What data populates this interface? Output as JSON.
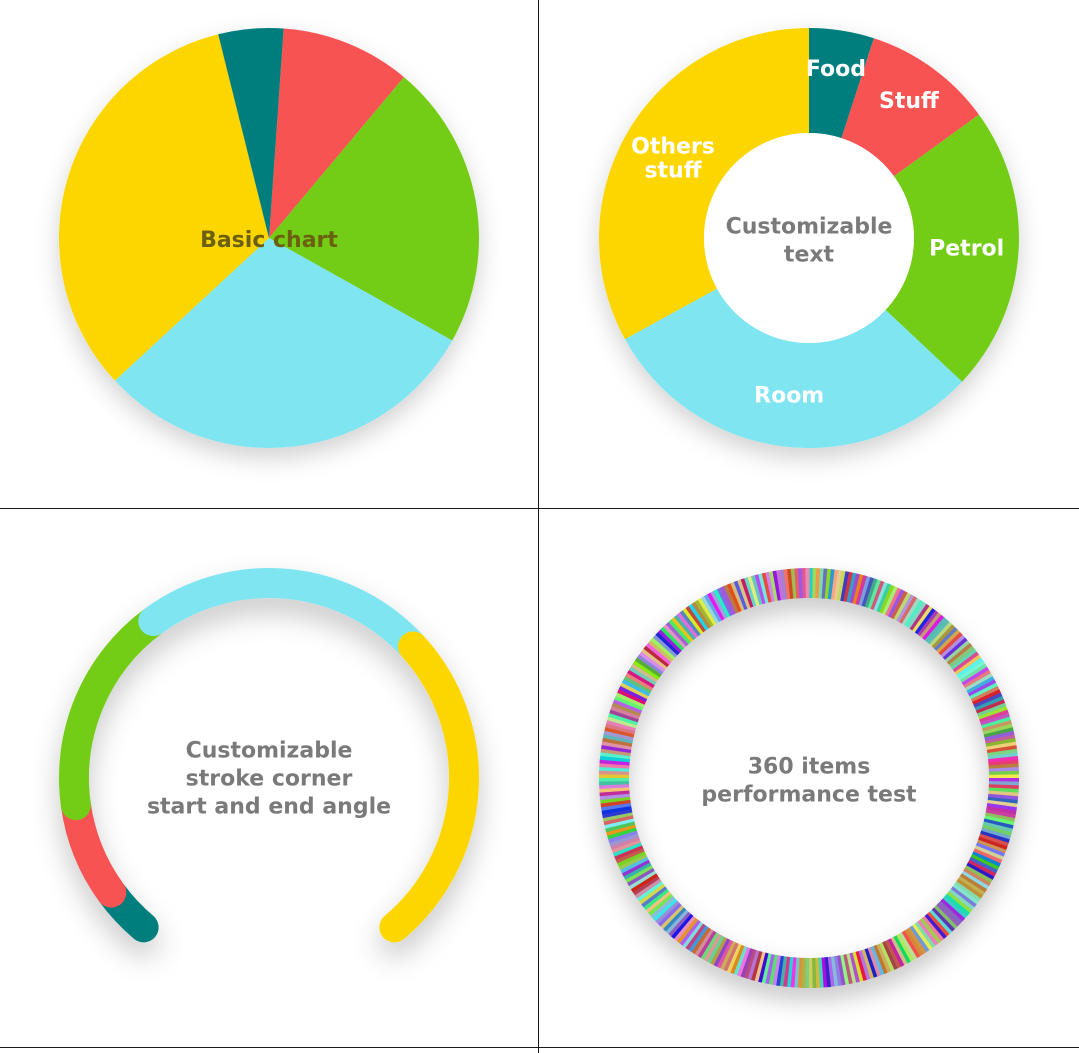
{
  "chart_data": [
    {
      "type": "pie",
      "title": "Basic chart",
      "slices": [
        {
          "value": 10,
          "color": "#F85252"
        },
        {
          "value": 22,
          "color": "#73CC14"
        },
        {
          "value": 30,
          "color": "#7EE5F1"
        },
        {
          "value": 33,
          "color": "#FDD600"
        },
        {
          "value": 5,
          "color": "#027E7E"
        }
      ]
    },
    {
      "type": "pie",
      "variant": "donut",
      "title": "Customizable text",
      "slices": [
        {
          "label": "Food",
          "value": 5,
          "color": "#027E7E"
        },
        {
          "label": "Stuff",
          "value": 10,
          "color": "#F85252"
        },
        {
          "label": "Petrol",
          "value": 22,
          "color": "#73CC14"
        },
        {
          "label": "Room",
          "value": 30,
          "color": "#7EE5F1"
        },
        {
          "label": "Others stuff",
          "value": 33,
          "color": "#FDD600"
        }
      ]
    },
    {
      "type": "pie",
      "variant": "arc",
      "title": "Customizable stroke corner start and end angle",
      "start_angle_deg": 220,
      "end_angle_deg": 500,
      "slices": [
        {
          "value": 5,
          "color": "#027E7E"
        },
        {
          "value": 10,
          "color": "#F85252"
        },
        {
          "value": 22,
          "color": "#73CC14"
        },
        {
          "value": 30,
          "color": "#7EE5F1"
        },
        {
          "value": 33,
          "color": "#FDD600"
        }
      ]
    },
    {
      "type": "pie",
      "variant": "ring",
      "title": "360 items performance test",
      "item_count": 360,
      "value_per_item": 1
    }
  ]
}
